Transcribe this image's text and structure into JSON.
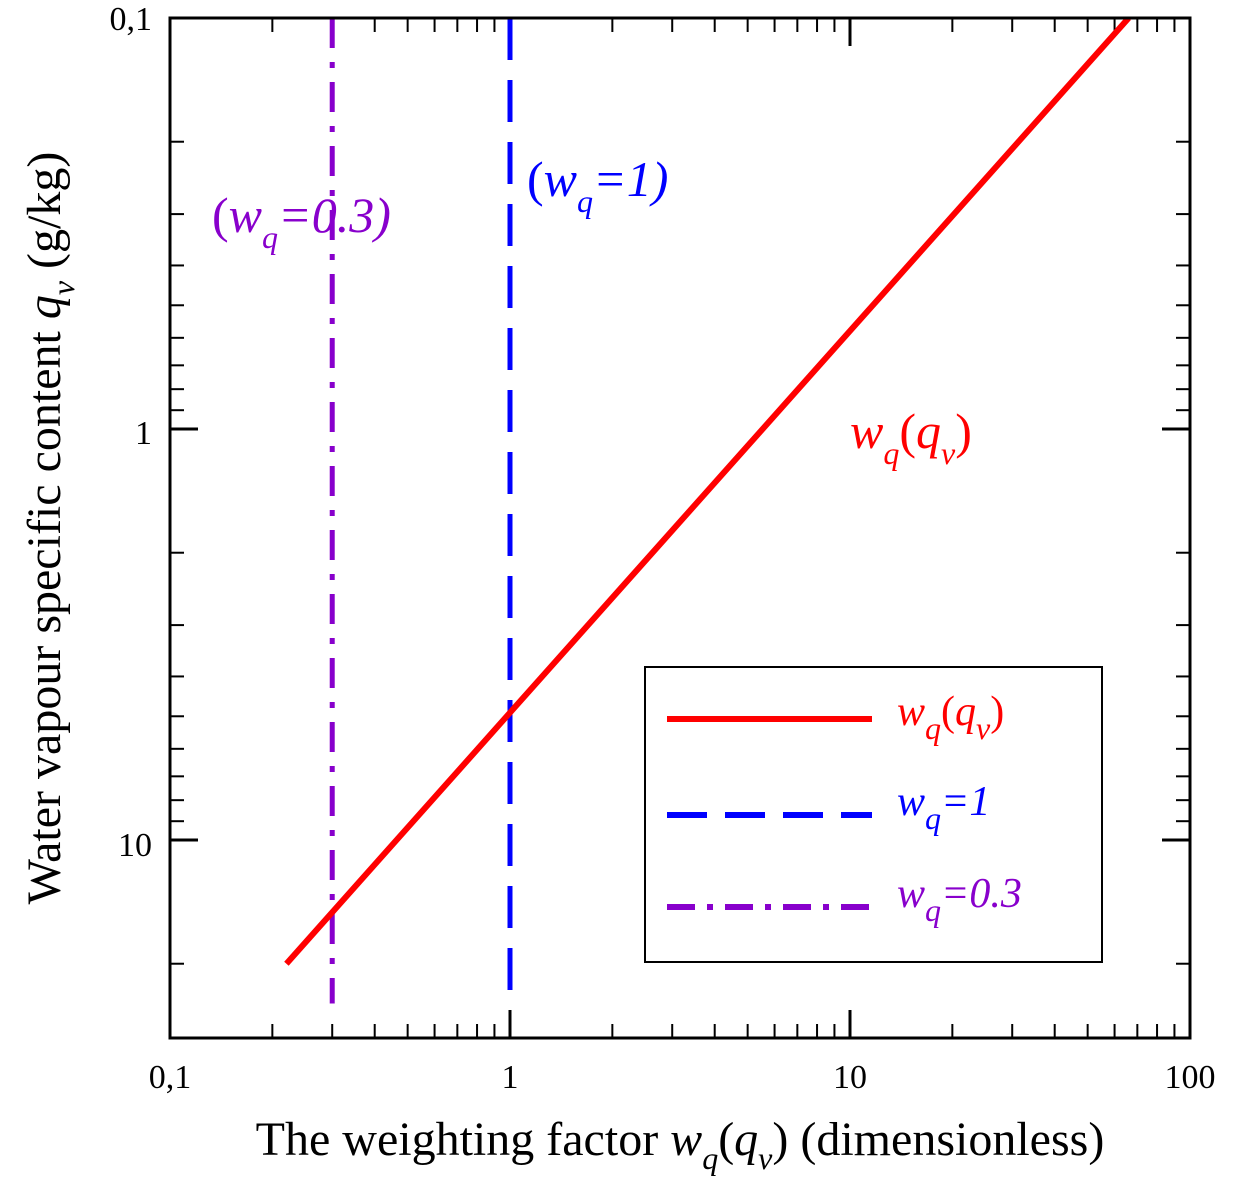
{
  "chart_data": {
    "type": "line",
    "title": "",
    "xscale": "log",
    "yscale": "log",
    "yaxis_inverted": true,
    "xlim": [
      0.1,
      100
    ],
    "ylim": [
      0.1,
      25
    ],
    "x_ticks": [
      {
        "value": 0.1,
        "label": "0,1"
      },
      {
        "value": 1,
        "label": "1"
      },
      {
        "value": 10,
        "label": "10"
      },
      {
        "value": 100,
        "label": "100"
      }
    ],
    "y_ticks": [
      {
        "value": 0.1,
        "label": "0,1"
      },
      {
        "value": 1,
        "label": "1"
      },
      {
        "value": 10,
        "label": "10"
      }
    ],
    "xlabel": {
      "prefix": "The weighting factor ",
      "w": "w",
      "q_sub": "q",
      "open": "(",
      "q": "q",
      "v_sub": "v",
      "close": ")",
      "suffix": " (dimensionless)"
    },
    "ylabel": {
      "prefix": "Water vapour specific content ",
      "q": "q",
      "v_sub": "v",
      "suffix": " (g/kg)"
    },
    "series": [
      {
        "name": "w_q(q_v)",
        "color": "#ff0000",
        "style": "solid",
        "x": [
          0.22,
          66
        ],
        "y": [
          20,
          0.1
        ]
      },
      {
        "name": "w_q=1",
        "color": "#0000ff",
        "style": "dashed",
        "x": [
          1,
          1
        ],
        "y": [
          0.1,
          25
        ]
      },
      {
        "name": "w_q=0.3",
        "color": "#8800cc",
        "style": "dashdot",
        "x": [
          0.3,
          0.3
        ],
        "y": [
          0.1,
          25
        ]
      }
    ],
    "annotations": {
      "purple": {
        "open": "(",
        "w": "w",
        "sub": "q",
        "rest": "=0.3)",
        "color": "#8800cc"
      },
      "blue": {
        "open": "(",
        "w": "w",
        "sub": "q",
        "rest": "=1)",
        "color": "#0000ff"
      },
      "red": {
        "w": "w",
        "sub": "q",
        "open": "(",
        "q": "q",
        "vsub": "v",
        "close": ")",
        "color": "#ff0000"
      }
    },
    "legend": {
      "placement": "lower-right",
      "entries": [
        {
          "w": "w",
          "sub": "q",
          "open": "(",
          "q": "q",
          "vsub": "v",
          "close": ")",
          "color": "#ff0000"
        },
        {
          "w": "w",
          "sub": "q",
          "rest": "=1",
          "color": "#0000ff"
        },
        {
          "w": "w",
          "sub": "q",
          "rest": "=0.3",
          "color": "#8800cc"
        }
      ]
    }
  }
}
